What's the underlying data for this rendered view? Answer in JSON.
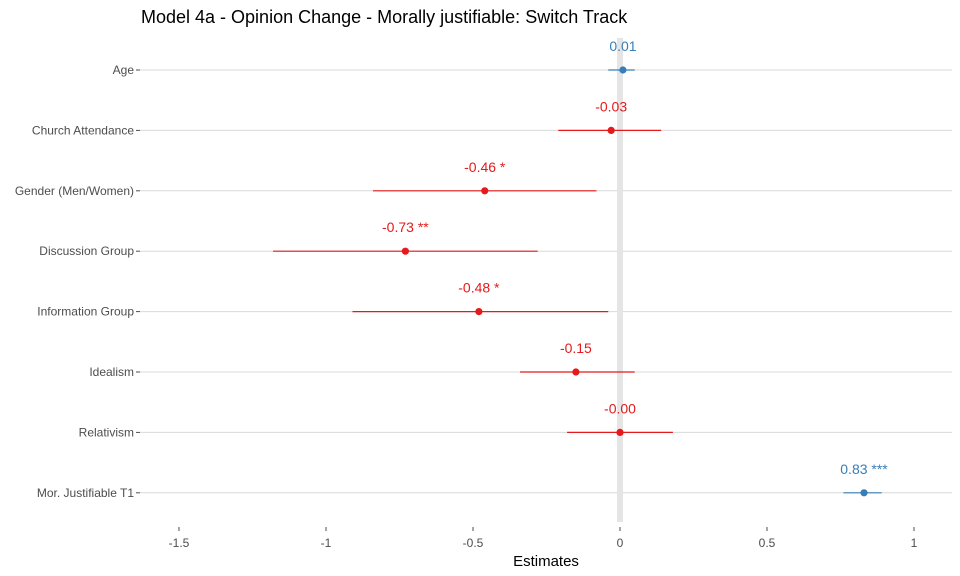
{
  "chart_data": {
    "type": "scatter",
    "subtype": "coefficient-plot",
    "title": "Model 4a - Opinion Change - Morally justifiable: Switch Track",
    "xlabel": "Estimates",
    "ylabel": "",
    "xlim": [
      -1.65,
      1.12
    ],
    "x_ticks": [
      {
        "value": -1.5,
        "label": "-1.5"
      },
      {
        "value": -1,
        "label": "-1"
      },
      {
        "value": -0.5,
        "label": "-0.5"
      },
      {
        "value": 0,
        "label": "0"
      },
      {
        "value": 0.5,
        "label": "0.5"
      },
      {
        "value": 1,
        "label": "1"
      }
    ],
    "grid": true,
    "reference_line": 0,
    "colors": {
      "positive": "#377eb8",
      "negative": "#e41a1c",
      "reference": "#e5e5e5",
      "grid": "#d9d9d9"
    },
    "terms": [
      {
        "term": "Age",
        "estimate": 0.01,
        "ci": [
          -0.04,
          0.05
        ],
        "label": "0.01",
        "sign": "positive"
      },
      {
        "term": "Church Attendance",
        "estimate": -0.03,
        "ci": [
          -0.21,
          0.14
        ],
        "label": "-0.03",
        "sign": "negative"
      },
      {
        "term": "Gender (Men/Women)",
        "estimate": -0.46,
        "ci": [
          -0.84,
          -0.08
        ],
        "label": "-0.46 *",
        "sign": "negative"
      },
      {
        "term": "Discussion Group",
        "estimate": -0.73,
        "ci": [
          -1.18,
          -0.28
        ],
        "label": "-0.73 **",
        "sign": "negative"
      },
      {
        "term": "Information Group",
        "estimate": -0.48,
        "ci": [
          -0.91,
          -0.04
        ],
        "label": "-0.48 *",
        "sign": "negative"
      },
      {
        "term": "Idealism",
        "estimate": -0.15,
        "ci": [
          -0.34,
          0.05
        ],
        "label": "-0.15",
        "sign": "negative"
      },
      {
        "term": "Relativism",
        "estimate": 0.0,
        "ci": [
          -0.18,
          0.18
        ],
        "label": "-0.00",
        "sign": "negative"
      },
      {
        "term": "Mor. Justifiable T1",
        "estimate": 0.83,
        "ci": [
          0.76,
          0.89
        ],
        "label": "0.83 ***",
        "sign": "positive"
      }
    ]
  }
}
